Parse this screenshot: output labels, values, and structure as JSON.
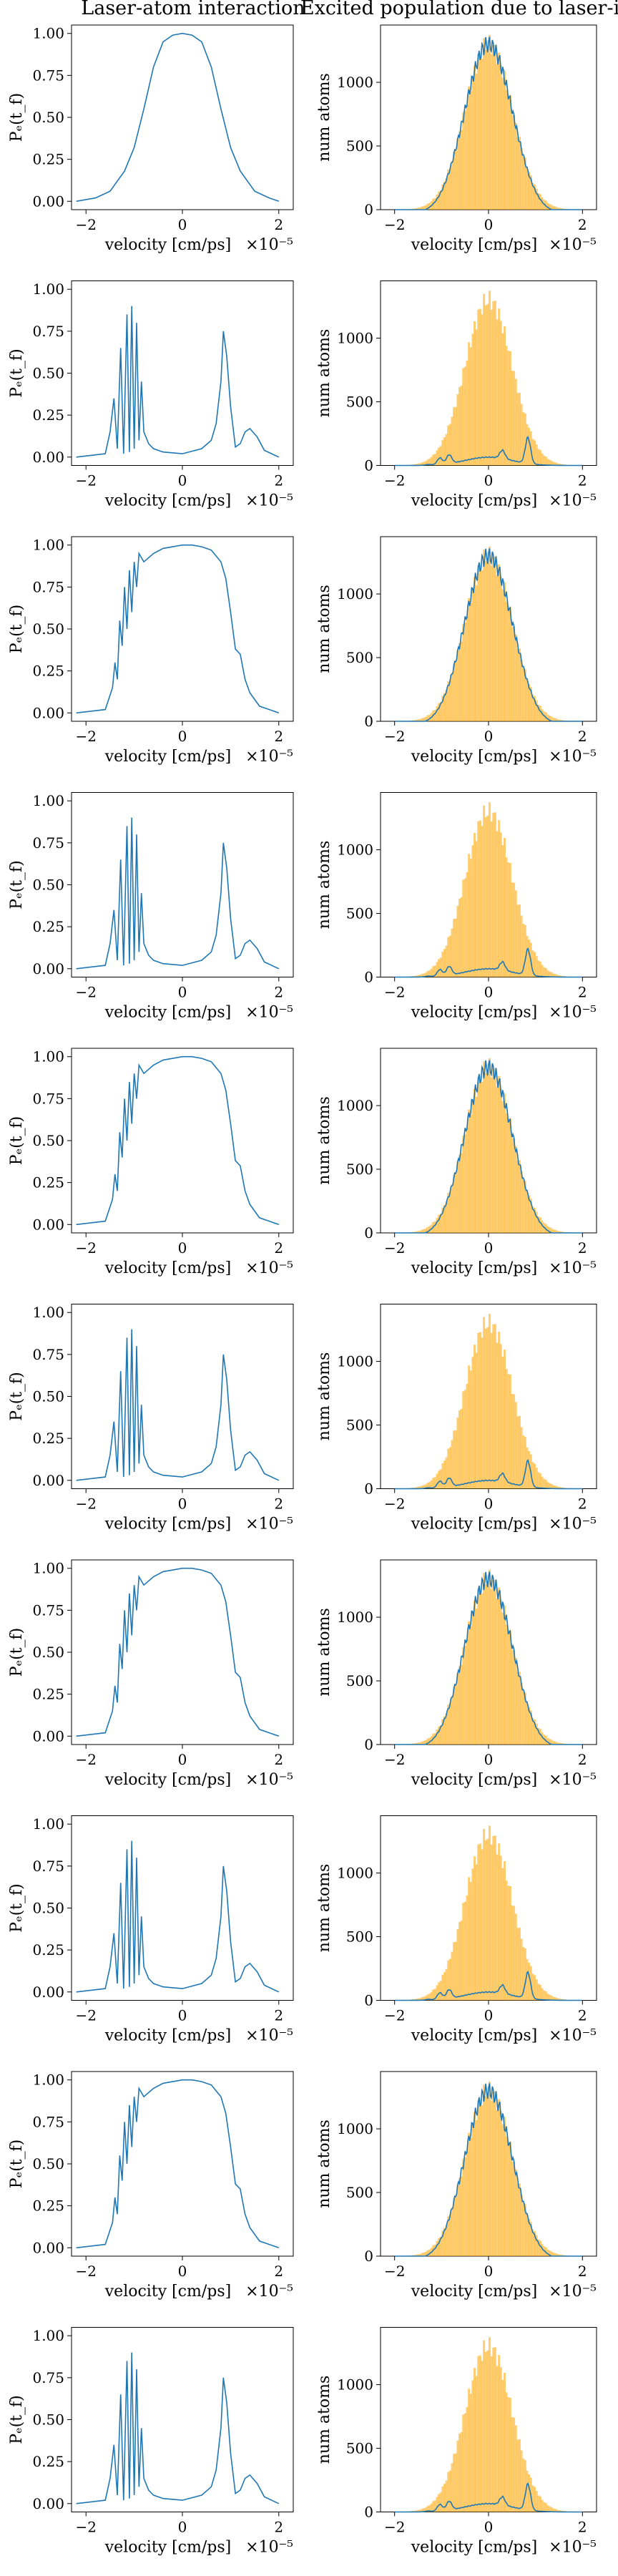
{
  "figure": {
    "col_titles": [
      "Laser-atom interaction",
      "Excited population due to laser-intera"
    ],
    "colors": {
      "line": "#1f77b4",
      "hist": "#ffa500"
    }
  },
  "chart_data": [
    {
      "panel": "left",
      "type": "line",
      "title": "Laser-atom interaction",
      "xlabel": "velocity [cm/ps]",
      "xmultiplier": "×10⁻⁵",
      "ylabel": "Pₑ(t_f)",
      "xlim": [
        -2.3,
        2.3
      ],
      "ylim": [
        -0.05,
        1.05
      ],
      "xticks": [
        "−2",
        "0",
        "2"
      ],
      "yticks": [
        "0.00",
        "0.25",
        "0.50",
        "0.75",
        "1.00"
      ],
      "x": [
        -2.2,
        -1.8,
        -1.5,
        -1.2,
        -1.0,
        -0.8,
        -0.6,
        -0.4,
        -0.2,
        0,
        0.2,
        0.4,
        0.6,
        0.8,
        1.0,
        1.2,
        1.5,
        1.8,
        2.0
      ],
      "y": [
        0.0,
        0.02,
        0.06,
        0.18,
        0.32,
        0.55,
        0.8,
        0.95,
        0.99,
        1.0,
        0.99,
        0.95,
        0.8,
        0.55,
        0.32,
        0.18,
        0.06,
        0.02,
        0.0
      ]
    },
    {
      "panel": "right",
      "type": "histogram",
      "xlabel": "velocity [cm/ps]",
      "xmultiplier": "×10⁻⁵",
      "ylabel": "num atoms",
      "xlim": [
        -2.3,
        2.3
      ],
      "ylim": [
        0,
        1450
      ],
      "xticks": [
        "−2",
        "0",
        "2"
      ],
      "yticks": [
        "0",
        "500",
        "1000"
      ],
      "gauss_peak": 1300,
      "gauss_sigma": 0.5,
      "excited_mode": "full"
    },
    {
      "panel": "left",
      "type": "line",
      "xlabel": "velocity [cm/ps]",
      "xmultiplier": "×10⁻⁵",
      "ylabel": "Pₑ(t_f)",
      "xlim": [
        -2.3,
        2.3
      ],
      "ylim": [
        -0.05,
        1.05
      ],
      "xticks": [
        "−2",
        "0",
        "2"
      ],
      "yticks": [
        "0.00",
        "0.25",
        "0.50",
        "0.75",
        "1.00"
      ],
      "x": [
        -2.2,
        -1.6,
        -1.5,
        -1.42,
        -1.35,
        -1.28,
        -1.22,
        -1.15,
        -1.1,
        -1.05,
        -1.0,
        -0.95,
        -0.9,
        -0.85,
        -0.8,
        -0.7,
        -0.6,
        -0.4,
        0.0,
        0.4,
        0.6,
        0.7,
        0.8,
        0.85,
        0.92,
        1.0,
        1.1,
        1.2,
        1.3,
        1.4,
        1.55,
        1.7,
        2.0
      ],
      "y": [
        0.0,
        0.02,
        0.15,
        0.35,
        0.05,
        0.65,
        0.02,
        0.85,
        0.03,
        0.9,
        0.05,
        0.8,
        0.1,
        0.45,
        0.15,
        0.08,
        0.05,
        0.03,
        0.02,
        0.05,
        0.1,
        0.2,
        0.45,
        0.75,
        0.6,
        0.3,
        0.06,
        0.08,
        0.15,
        0.17,
        0.12,
        0.04,
        0.0
      ]
    },
    {
      "panel": "right",
      "type": "histogram",
      "xlabel": "velocity [cm/ps]",
      "xmultiplier": "×10⁻⁵",
      "ylabel": "num atoms",
      "xlim": [
        -2.3,
        2.3
      ],
      "ylim": [
        0,
        1450
      ],
      "xticks": [
        "−2",
        "0",
        "2"
      ],
      "yticks": [
        "0",
        "500",
        "1000"
      ],
      "gauss_peak": 1300,
      "gauss_sigma": 0.5,
      "excited_mode": "sparse"
    },
    {
      "panel": "left",
      "type": "line",
      "xlabel": "velocity [cm/ps]",
      "xmultiplier": "×10⁻⁵",
      "ylabel": "Pₑ(t_f)",
      "xlim": [
        -2.3,
        2.3
      ],
      "ylim": [
        -0.05,
        1.05
      ],
      "xticks": [
        "−2",
        "0",
        "2"
      ],
      "yticks": [
        "0.00",
        "0.25",
        "0.50",
        "0.75",
        "1.00"
      ],
      "x": [
        -2.2,
        -1.6,
        -1.45,
        -1.4,
        -1.35,
        -1.3,
        -1.25,
        -1.2,
        -1.15,
        -1.1,
        -1.05,
        -1.0,
        -0.95,
        -0.9,
        -0.8,
        -0.6,
        -0.4,
        -0.2,
        0.0,
        0.2,
        0.4,
        0.6,
        0.8,
        0.9,
        1.0,
        1.1,
        1.2,
        1.3,
        1.4,
        1.6,
        2.0
      ],
      "y": [
        0.0,
        0.02,
        0.15,
        0.3,
        0.2,
        0.55,
        0.4,
        0.75,
        0.5,
        0.85,
        0.6,
        0.9,
        0.75,
        0.95,
        0.9,
        0.95,
        0.98,
        0.99,
        1.0,
        1.0,
        0.99,
        0.97,
        0.9,
        0.8,
        0.6,
        0.38,
        0.35,
        0.2,
        0.12,
        0.04,
        0.0
      ]
    },
    {
      "panel": "right",
      "type": "histogram",
      "xlabel": "velocity [cm/ps]",
      "xmultiplier": "×10⁻⁵",
      "ylabel": "num atoms",
      "xlim": [
        -2.3,
        2.3
      ],
      "ylim": [
        0,
        1450
      ],
      "xticks": [
        "−2",
        "0",
        "2"
      ],
      "yticks": [
        "0",
        "500",
        "1000"
      ],
      "gauss_peak": 1300,
      "gauss_sigma": 0.5,
      "excited_mode": "full"
    },
    {
      "panel": "left",
      "type": "line",
      "xlabel": "velocity [cm/ps]",
      "xmultiplier": "×10⁻⁵",
      "ylabel": "Pₑ(t_f)",
      "xlim": [
        -2.3,
        2.3
      ],
      "ylim": [
        -0.05,
        1.05
      ],
      "xticks": [
        "−2",
        "0",
        "2"
      ],
      "yticks": [
        "0.00",
        "0.25",
        "0.50",
        "0.75",
        "1.00"
      ],
      "x": [
        -2.2,
        -1.6,
        -1.5,
        -1.42,
        -1.35,
        -1.28,
        -1.22,
        -1.15,
        -1.1,
        -1.05,
        -1.0,
        -0.95,
        -0.9,
        -0.85,
        -0.8,
        -0.7,
        -0.6,
        -0.4,
        0.0,
        0.4,
        0.6,
        0.7,
        0.8,
        0.85,
        0.92,
        1.0,
        1.1,
        1.2,
        1.3,
        1.4,
        1.55,
        1.7,
        2.0
      ],
      "y": [
        0.0,
        0.02,
        0.15,
        0.35,
        0.05,
        0.65,
        0.02,
        0.85,
        0.03,
        0.9,
        0.05,
        0.8,
        0.1,
        0.45,
        0.15,
        0.08,
        0.05,
        0.03,
        0.02,
        0.05,
        0.1,
        0.2,
        0.45,
        0.75,
        0.6,
        0.3,
        0.06,
        0.08,
        0.15,
        0.17,
        0.12,
        0.04,
        0.0
      ]
    },
    {
      "panel": "right",
      "type": "histogram",
      "xlabel": "velocity [cm/ps]",
      "xmultiplier": "×10⁻⁵",
      "ylabel": "num atoms",
      "xlim": [
        -2.3,
        2.3
      ],
      "ylim": [
        0,
        1450
      ],
      "xticks": [
        "−2",
        "0",
        "2"
      ],
      "yticks": [
        "0",
        "500",
        "1000"
      ],
      "gauss_peak": 1300,
      "gauss_sigma": 0.5,
      "excited_mode": "sparse"
    },
    {
      "panel": "left",
      "type": "line",
      "xlabel": "velocity [cm/ps]",
      "xmultiplier": "×10⁻⁵",
      "ylabel": "Pₑ(t_f)",
      "xlim": [
        -2.3,
        2.3
      ],
      "ylim": [
        -0.05,
        1.05
      ],
      "xticks": [
        "−2",
        "0",
        "2"
      ],
      "yticks": [
        "0.00",
        "0.25",
        "0.50",
        "0.75",
        "1.00"
      ],
      "x": [
        -2.2,
        -1.6,
        -1.45,
        -1.4,
        -1.35,
        -1.3,
        -1.25,
        -1.2,
        -1.15,
        -1.1,
        -1.05,
        -1.0,
        -0.95,
        -0.9,
        -0.8,
        -0.6,
        -0.4,
        -0.2,
        0.0,
        0.2,
        0.4,
        0.6,
        0.8,
        0.9,
        1.0,
        1.1,
        1.2,
        1.3,
        1.4,
        1.6,
        2.0
      ],
      "y": [
        0.0,
        0.02,
        0.15,
        0.3,
        0.2,
        0.55,
        0.4,
        0.75,
        0.5,
        0.85,
        0.6,
        0.9,
        0.75,
        0.95,
        0.9,
        0.95,
        0.98,
        0.99,
        1.0,
        1.0,
        0.99,
        0.97,
        0.9,
        0.8,
        0.6,
        0.38,
        0.35,
        0.2,
        0.12,
        0.04,
        0.0
      ]
    },
    {
      "panel": "right",
      "type": "histogram",
      "xlabel": "velocity [cm/ps]",
      "xmultiplier": "×10⁻⁵",
      "ylabel": "num atoms",
      "xlim": [
        -2.3,
        2.3
      ],
      "ylim": [
        0,
        1450
      ],
      "xticks": [
        "−2",
        "0",
        "2"
      ],
      "yticks": [
        "0",
        "500",
        "1000"
      ],
      "gauss_peak": 1300,
      "gauss_sigma": 0.5,
      "excited_mode": "full"
    },
    {
      "panel": "left",
      "type": "line",
      "xlabel": "velocity [cm/ps]",
      "xmultiplier": "×10⁻⁵",
      "ylabel": "Pₑ(t_f)",
      "xlim": [
        -2.3,
        2.3
      ],
      "ylim": [
        -0.05,
        1.05
      ],
      "xticks": [
        "−2",
        "0",
        "2"
      ],
      "yticks": [
        "0.00",
        "0.25",
        "0.50",
        "0.75",
        "1.00"
      ],
      "x": [
        -2.2,
        -1.6,
        -1.5,
        -1.42,
        -1.35,
        -1.28,
        -1.22,
        -1.15,
        -1.1,
        -1.05,
        -1.0,
        -0.95,
        -0.9,
        -0.85,
        -0.8,
        -0.7,
        -0.6,
        -0.4,
        0.0,
        0.4,
        0.6,
        0.7,
        0.8,
        0.85,
        0.92,
        1.0,
        1.1,
        1.2,
        1.3,
        1.4,
        1.55,
        1.7,
        2.0
      ],
      "y": [
        0.0,
        0.02,
        0.15,
        0.35,
        0.05,
        0.65,
        0.02,
        0.85,
        0.03,
        0.9,
        0.05,
        0.8,
        0.1,
        0.45,
        0.15,
        0.08,
        0.05,
        0.03,
        0.02,
        0.05,
        0.1,
        0.2,
        0.45,
        0.75,
        0.6,
        0.3,
        0.06,
        0.08,
        0.15,
        0.17,
        0.12,
        0.04,
        0.0
      ]
    },
    {
      "panel": "right",
      "type": "histogram",
      "xlabel": "velocity [cm/ps]",
      "xmultiplier": "×10⁻⁵",
      "ylabel": "num atoms",
      "xlim": [
        -2.3,
        2.3
      ],
      "ylim": [
        0,
        1450
      ],
      "xticks": [
        "−2",
        "0",
        "2"
      ],
      "yticks": [
        "0",
        "500",
        "1000"
      ],
      "gauss_peak": 1300,
      "gauss_sigma": 0.5,
      "excited_mode": "sparse"
    },
    {
      "panel": "left",
      "type": "line",
      "xlabel": "velocity [cm/ps]",
      "xmultiplier": "×10⁻⁵",
      "ylabel": "Pₑ(t_f)",
      "xlim": [
        -2.3,
        2.3
      ],
      "ylim": [
        -0.05,
        1.05
      ],
      "xticks": [
        "−2",
        "0",
        "2"
      ],
      "yticks": [
        "0.00",
        "0.25",
        "0.50",
        "0.75",
        "1.00"
      ],
      "x": [
        -2.2,
        -1.6,
        -1.45,
        -1.4,
        -1.35,
        -1.3,
        -1.25,
        -1.2,
        -1.15,
        -1.1,
        -1.05,
        -1.0,
        -0.95,
        -0.9,
        -0.8,
        -0.6,
        -0.4,
        -0.2,
        0.0,
        0.2,
        0.4,
        0.6,
        0.8,
        0.9,
        1.0,
        1.1,
        1.2,
        1.3,
        1.4,
        1.6,
        2.0
      ],
      "y": [
        0.0,
        0.02,
        0.15,
        0.3,
        0.2,
        0.55,
        0.4,
        0.75,
        0.5,
        0.85,
        0.6,
        0.9,
        0.75,
        0.95,
        0.9,
        0.95,
        0.98,
        0.99,
        1.0,
        1.0,
        0.99,
        0.97,
        0.9,
        0.8,
        0.6,
        0.38,
        0.35,
        0.2,
        0.12,
        0.04,
        0.0
      ]
    },
    {
      "panel": "right",
      "type": "histogram",
      "xlabel": "velocity [cm/ps]",
      "xmultiplier": "×10⁻⁵",
      "ylabel": "num atoms",
      "xlim": [
        -2.3,
        2.3
      ],
      "ylim": [
        0,
        1450
      ],
      "xticks": [
        "−2",
        "0",
        "2"
      ],
      "yticks": [
        "0",
        "500",
        "1000"
      ],
      "gauss_peak": 1300,
      "gauss_sigma": 0.5,
      "excited_mode": "full"
    },
    {
      "panel": "left",
      "type": "line",
      "xlabel": "velocity [cm/ps]",
      "xmultiplier": "×10⁻⁵",
      "ylabel": "Pₑ(t_f)",
      "xlim": [
        -2.3,
        2.3
      ],
      "ylim": [
        -0.05,
        1.05
      ],
      "xticks": [
        "−2",
        "0",
        "2"
      ],
      "yticks": [
        "0.00",
        "0.25",
        "0.50",
        "0.75",
        "1.00"
      ],
      "x": [
        -2.2,
        -1.6,
        -1.5,
        -1.42,
        -1.35,
        -1.28,
        -1.22,
        -1.15,
        -1.1,
        -1.05,
        -1.0,
        -0.95,
        -0.9,
        -0.85,
        -0.8,
        -0.7,
        -0.6,
        -0.4,
        0.0,
        0.4,
        0.6,
        0.7,
        0.8,
        0.85,
        0.92,
        1.0,
        1.1,
        1.2,
        1.3,
        1.4,
        1.55,
        1.7,
        2.0
      ],
      "y": [
        0.0,
        0.02,
        0.15,
        0.35,
        0.05,
        0.65,
        0.02,
        0.85,
        0.03,
        0.9,
        0.05,
        0.8,
        0.1,
        0.45,
        0.15,
        0.08,
        0.05,
        0.03,
        0.02,
        0.05,
        0.1,
        0.2,
        0.45,
        0.75,
        0.6,
        0.3,
        0.06,
        0.08,
        0.15,
        0.17,
        0.12,
        0.04,
        0.0
      ]
    },
    {
      "panel": "right",
      "type": "histogram",
      "xlabel": "velocity [cm/ps]",
      "xmultiplier": "×10⁻⁵",
      "ylabel": "num atoms",
      "xlim": [
        -2.3,
        2.3
      ],
      "ylim": [
        0,
        1450
      ],
      "xticks": [
        "−2",
        "0",
        "2"
      ],
      "yticks": [
        "0",
        "500",
        "1000"
      ],
      "gauss_peak": 1300,
      "gauss_sigma": 0.5,
      "excited_mode": "sparse"
    },
    {
      "panel": "left",
      "type": "line",
      "xlabel": "velocity [cm/ps]",
      "xmultiplier": "×10⁻⁵",
      "ylabel": "Pₑ(t_f)",
      "xlim": [
        -2.3,
        2.3
      ],
      "ylim": [
        -0.05,
        1.05
      ],
      "xticks": [
        "−2",
        "0",
        "2"
      ],
      "yticks": [
        "0.00",
        "0.25",
        "0.50",
        "0.75",
        "1.00"
      ],
      "x": [
        -2.2,
        -1.6,
        -1.45,
        -1.4,
        -1.35,
        -1.3,
        -1.25,
        -1.2,
        -1.15,
        -1.1,
        -1.05,
        -1.0,
        -0.95,
        -0.9,
        -0.8,
        -0.6,
        -0.4,
        -0.2,
        0.0,
        0.2,
        0.4,
        0.6,
        0.8,
        0.9,
        1.0,
        1.1,
        1.2,
        1.3,
        1.4,
        1.6,
        2.0
      ],
      "y": [
        0.0,
        0.02,
        0.15,
        0.3,
        0.2,
        0.55,
        0.4,
        0.75,
        0.5,
        0.85,
        0.6,
        0.9,
        0.75,
        0.95,
        0.9,
        0.95,
        0.98,
        0.99,
        1.0,
        1.0,
        0.99,
        0.97,
        0.9,
        0.8,
        0.6,
        0.38,
        0.35,
        0.2,
        0.12,
        0.04,
        0.0
      ]
    },
    {
      "panel": "right",
      "type": "histogram",
      "xlabel": "velocity [cm/ps]",
      "xmultiplier": "×10⁻⁵",
      "ylabel": "num atoms",
      "xlim": [
        -2.3,
        2.3
      ],
      "ylim": [
        0,
        1450
      ],
      "xticks": [
        "−2",
        "0",
        "2"
      ],
      "yticks": [
        "0",
        "500",
        "1000"
      ],
      "gauss_peak": 1300,
      "gauss_sigma": 0.5,
      "excited_mode": "full"
    },
    {
      "panel": "left",
      "type": "line",
      "xlabel": "velocity [cm/ps]",
      "xmultiplier": "×10⁻⁵",
      "ylabel": "Pₑ(t_f)",
      "xlim": [
        -2.3,
        2.3
      ],
      "ylim": [
        -0.05,
        1.05
      ],
      "xticks": [
        "−2",
        "0",
        "2"
      ],
      "yticks": [
        "0.00",
        "0.25",
        "0.50",
        "0.75",
        "1.00"
      ],
      "x": [
        -2.2,
        -1.6,
        -1.5,
        -1.42,
        -1.35,
        -1.28,
        -1.22,
        -1.15,
        -1.1,
        -1.05,
        -1.0,
        -0.95,
        -0.9,
        -0.85,
        -0.8,
        -0.7,
        -0.6,
        -0.4,
        0.0,
        0.4,
        0.6,
        0.7,
        0.8,
        0.85,
        0.92,
        1.0,
        1.1,
        1.2,
        1.3,
        1.4,
        1.55,
        1.7,
        2.0
      ],
      "y": [
        0.0,
        0.02,
        0.15,
        0.35,
        0.05,
        0.65,
        0.02,
        0.85,
        0.03,
        0.9,
        0.05,
        0.8,
        0.1,
        0.45,
        0.15,
        0.08,
        0.05,
        0.03,
        0.02,
        0.05,
        0.1,
        0.2,
        0.45,
        0.75,
        0.6,
        0.3,
        0.06,
        0.08,
        0.15,
        0.17,
        0.12,
        0.04,
        0.0
      ]
    },
    {
      "panel": "right",
      "type": "histogram",
      "xlabel": "velocity [cm/ps]",
      "xmultiplier": "×10⁻⁵",
      "ylabel": "num atoms",
      "xlim": [
        -2.3,
        2.3
      ],
      "ylim": [
        0,
        1450
      ],
      "xticks": [
        "−2",
        "0",
        "2"
      ],
      "yticks": [
        "0",
        "500",
        "1000"
      ],
      "gauss_peak": 1300,
      "gauss_sigma": 0.5,
      "excited_mode": "sparse"
    }
  ]
}
